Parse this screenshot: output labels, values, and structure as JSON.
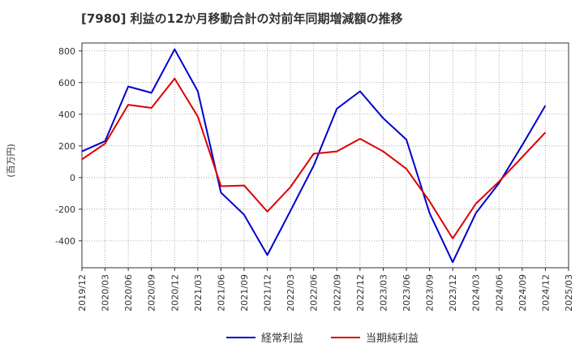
{
  "chart_data": {
    "type": "line",
    "title": "[7980]  利益の12か月移動合計の対前年同期増減額の推移",
    "ylabel": "(百万円)",
    "xlabel": "",
    "ylim": [
      -570,
      850
    ],
    "yticks": [
      -400,
      -200,
      0,
      200,
      400,
      600,
      800
    ],
    "categories": [
      "2019/12",
      "2020/03",
      "2020/06",
      "2020/09",
      "2020/12",
      "2021/03",
      "2021/06",
      "2021/09",
      "2021/12",
      "2022/03",
      "2022/06",
      "2022/09",
      "2022/12",
      "2023/03",
      "2023/06",
      "2023/09",
      "2023/12",
      "2024/03",
      "2024/06",
      "2024/09",
      "2024/12",
      "2025/03"
    ],
    "series": [
      {
        "name": "経常利益",
        "color": "#0000cc",
        "values": [
          165,
          230,
          575,
          535,
          810,
          545,
          -95,
          -235,
          -490,
          -210,
          75,
          435,
          545,
          375,
          240,
          -225,
          -535,
          -225,
          -35,
          205,
          455,
          null
        ]
      },
      {
        "name": "当期純利益",
        "color": "#dd0000",
        "values": [
          115,
          215,
          460,
          440,
          625,
          385,
          -55,
          -50,
          -215,
          -60,
          150,
          165,
          245,
          165,
          55,
          -150,
          -385,
          -165,
          -25,
          130,
          285,
          null
        ]
      }
    ],
    "grid": true,
    "legend": "bottom"
  }
}
